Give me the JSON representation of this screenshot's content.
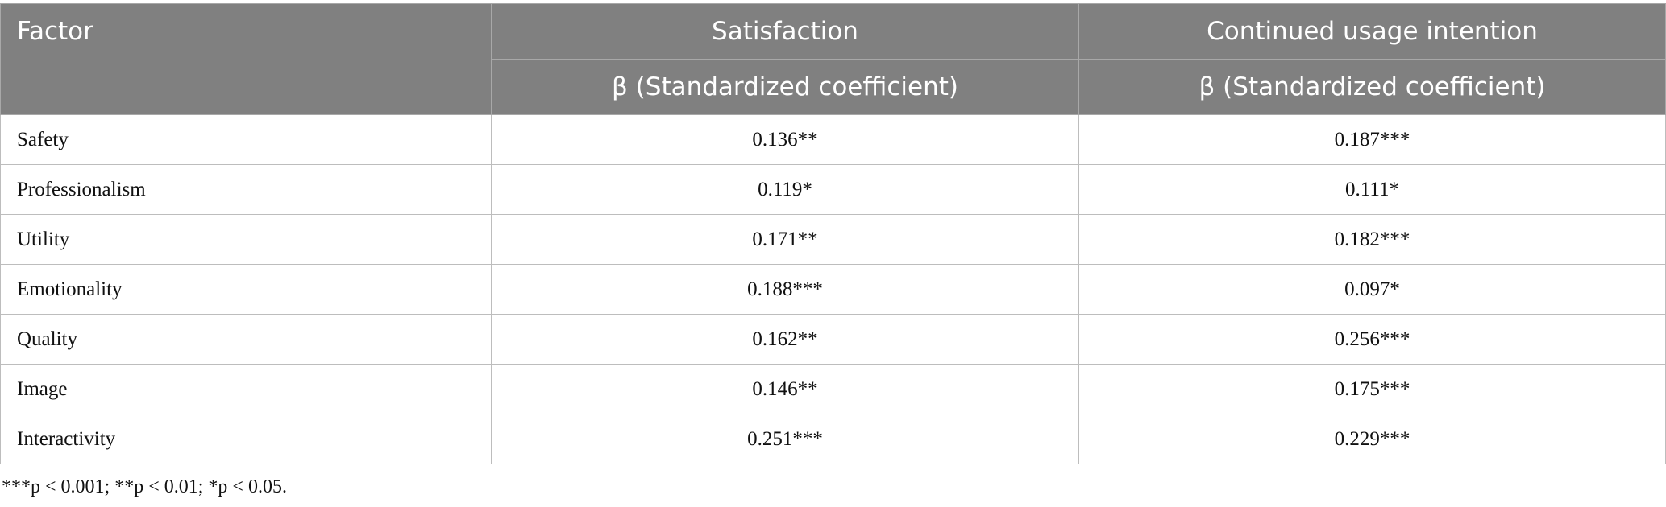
{
  "table": {
    "header": [
      "Factor",
      "Satisfaction",
      "Continued usage intention"
    ],
    "subheader": [
      "β (Standardized coefficient)",
      "β (Standardized coefficient)"
    ],
    "rows": [
      [
        "Safety",
        "0.136**",
        "0.187***"
      ],
      [
        "Professionalism",
        "0.119*",
        "0.111*"
      ],
      [
        "Utility",
        "0.171**",
        "0.182***"
      ],
      [
        "Emotionality",
        "0.188***",
        "0.097*"
      ],
      [
        "Quality",
        "0.162**",
        "0.256***"
      ],
      [
        "Image",
        "0.146**",
        "0.175***"
      ],
      [
        "Interactivity",
        "0.251***",
        "0.229***"
      ]
    ]
  },
  "footnote": "***p < 0.001; **p < 0.01; *p < 0.05."
}
